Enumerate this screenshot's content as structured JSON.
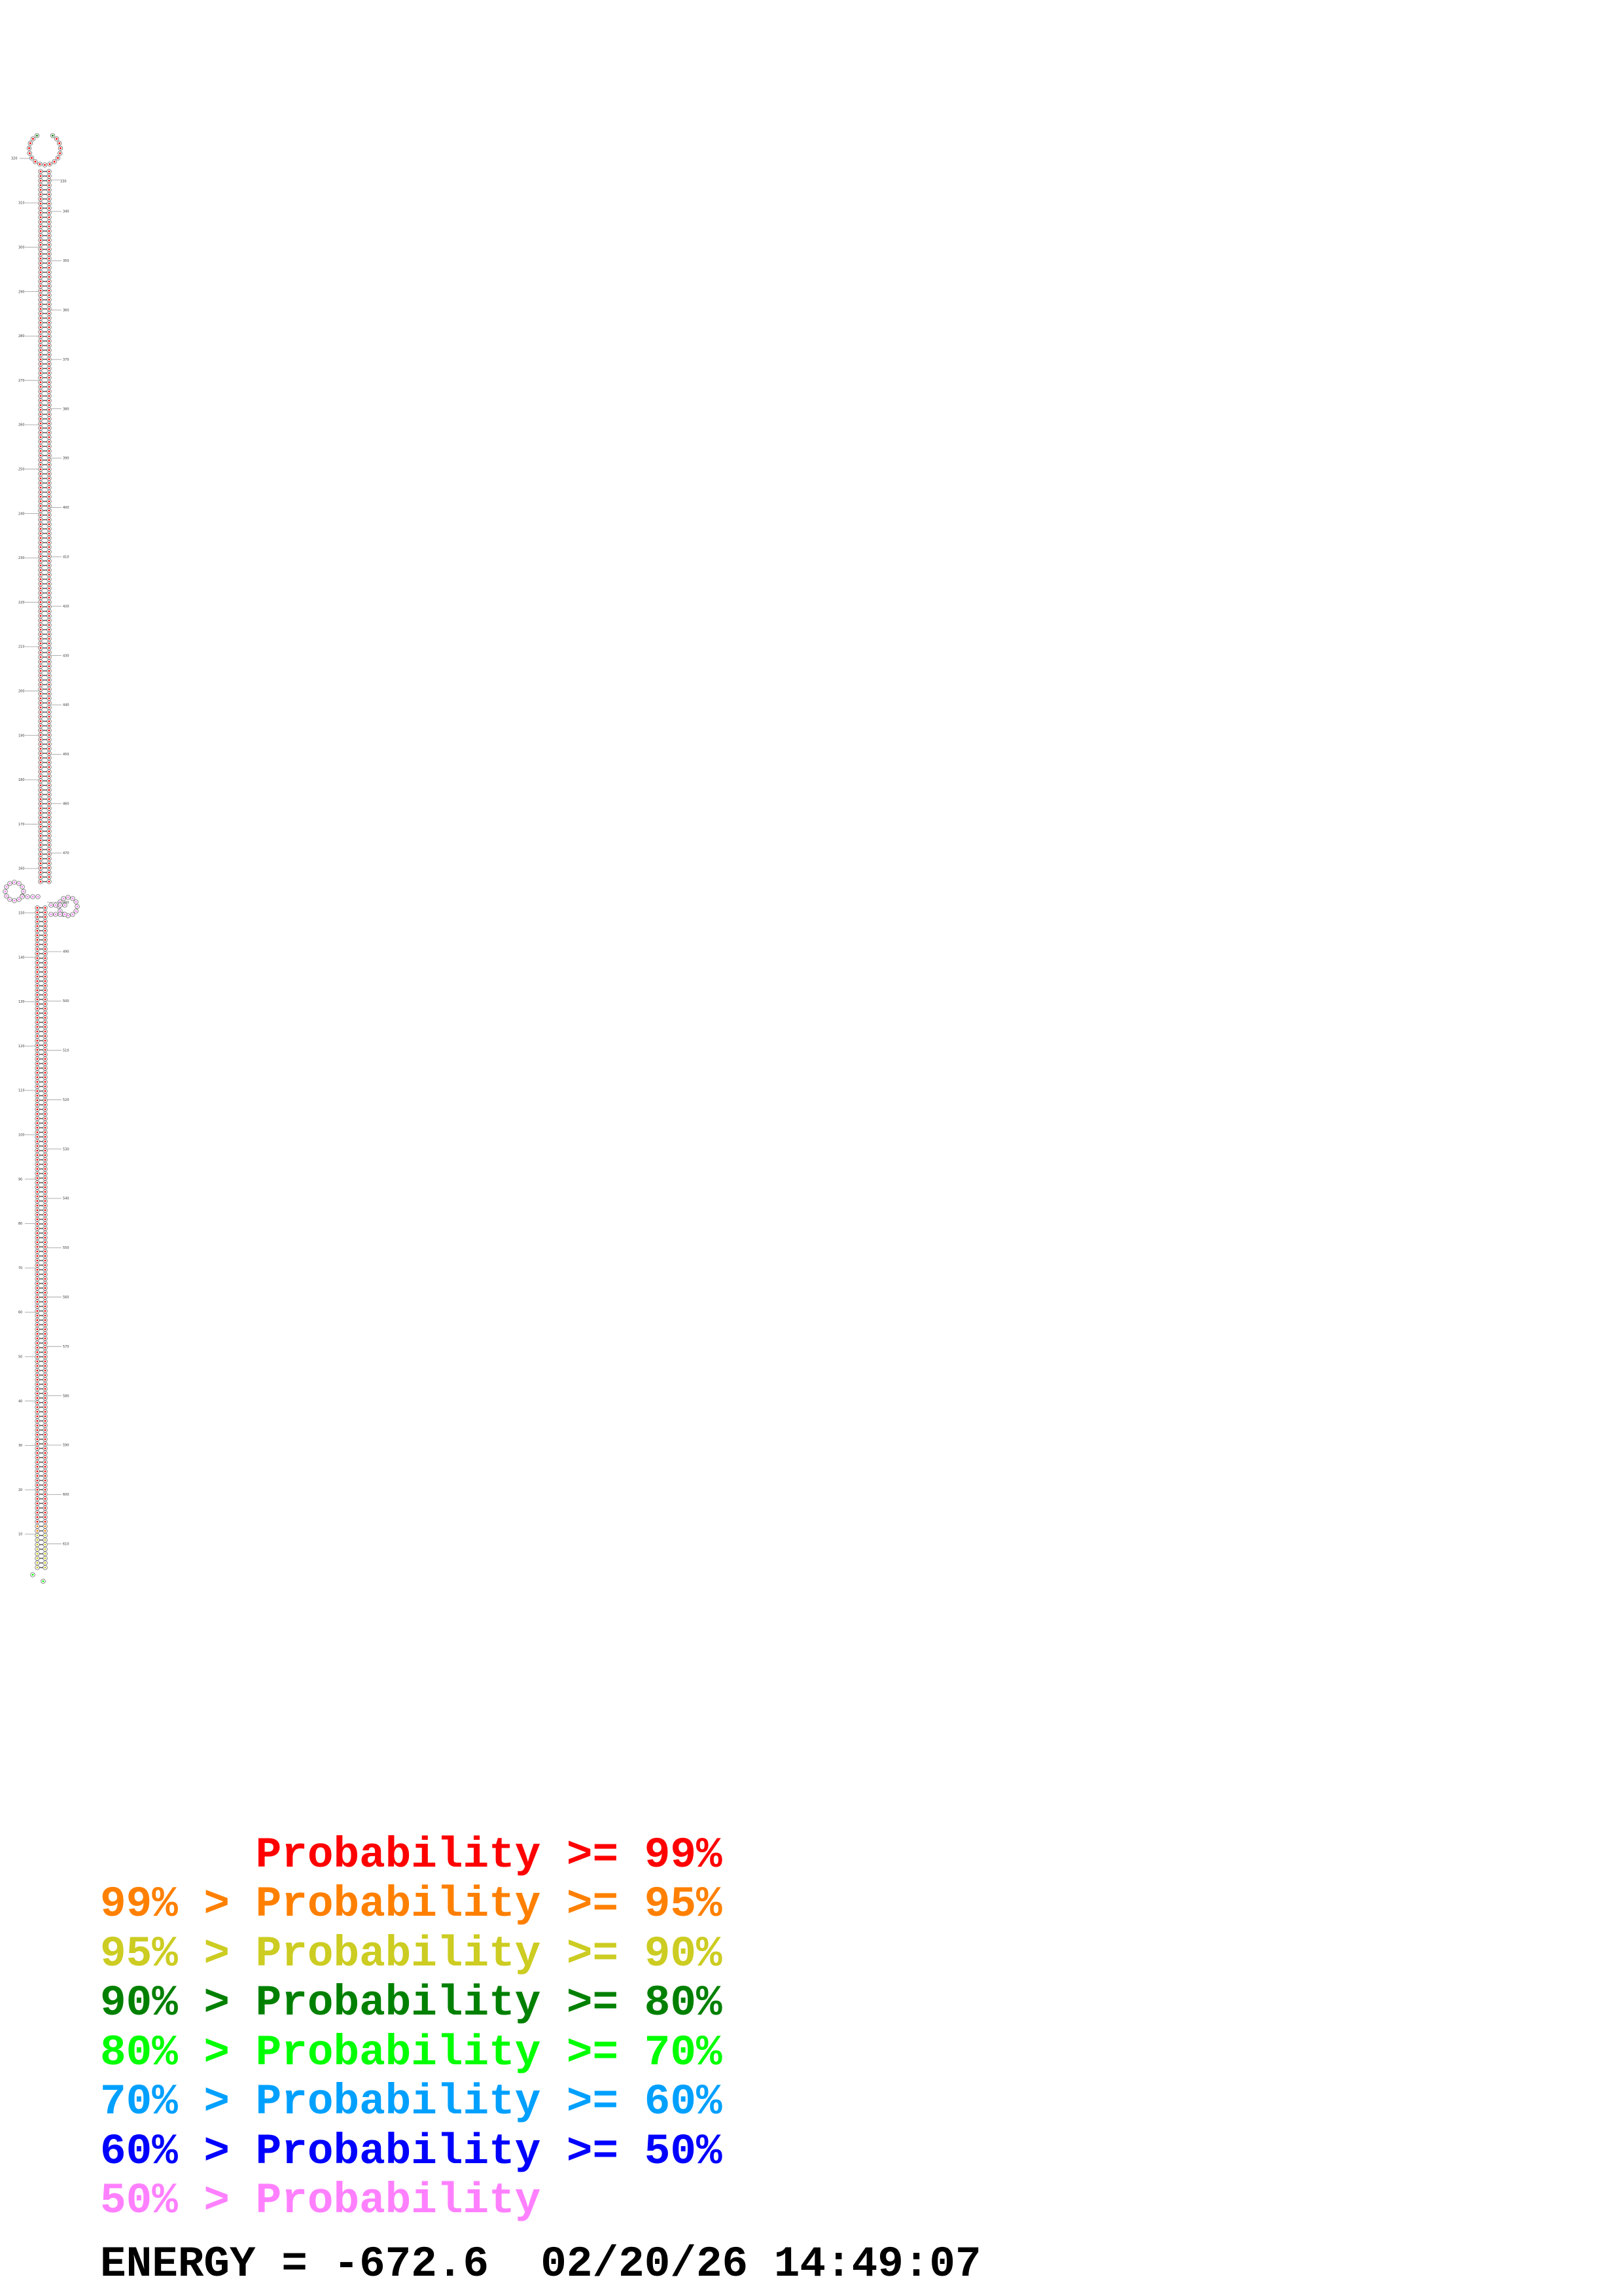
{
  "structure": {
    "hairpin_labels": [
      "320",
      "330"
    ],
    "left_labels": [
      "310",
      "300",
      "290",
      "280",
      "270",
      "260",
      "250",
      "240",
      "230",
      "220",
      "210",
      "200",
      "190",
      "180",
      "170",
      "160",
      "150",
      "140",
      "130",
      "120",
      "110",
      "100",
      "90",
      "80",
      "70",
      "60",
      "50",
      "40",
      "30",
      "20",
      "10"
    ],
    "right_labels": [
      "340",
      "350",
      "360",
      "370",
      "380",
      "390",
      "400",
      "410",
      "420",
      "430",
      "440",
      "450",
      "460",
      "470",
      "480",
      "490",
      "500",
      "510",
      "520",
      "530",
      "540",
      "550",
      "560",
      "570",
      "580",
      "590",
      "600",
      "610"
    ],
    "colors": {
      "p99": "#ff0000",
      "p95": "#ff8000",
      "p90": "#cccc22",
      "p80": "#008000",
      "p70": "#00ff00",
      "p60": "#00a0ff",
      "p50": "#0000ff",
      "low": "#ff80ff",
      "outline": "#555555",
      "pair": "#333333"
    }
  },
  "legend": [
    {
      "text": "      Probability >= 99%",
      "color": "#ff0000"
    },
    {
      "text": "99% > Probability >= 95%",
      "color": "#ff8000"
    },
    {
      "text": "95% > Probability >= 90%",
      "color": "#cccc22"
    },
    {
      "text": "90% > Probability >= 80%",
      "color": "#008000"
    },
    {
      "text": "80% > Probability >= 70%",
      "color": "#00ff00"
    },
    {
      "text": "70% > Probability >= 60%",
      "color": "#00a0ff"
    },
    {
      "text": "60% > Probability >= 50%",
      "color": "#0000ff"
    },
    {
      "text": "50% > Probability",
      "color": "#ff80ff"
    }
  ],
  "footer": {
    "text": "ENERGY = -672.6  02/20/26 14:49:07",
    "color": "#000000"
  }
}
